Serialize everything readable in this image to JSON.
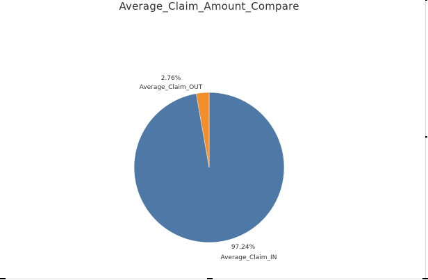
{
  "chart_data": {
    "type": "pie",
    "title": "Average_Claim_Amount_Compare",
    "slices": [
      {
        "name": "Average_Claim_IN",
        "value": 97.24,
        "label": "97.24%",
        "color": "#4e79a7"
      },
      {
        "name": "Average_Claim_OUT",
        "value": 2.76,
        "label": "2.76%",
        "color": "#f28e2b"
      }
    ],
    "legend": "none"
  }
}
